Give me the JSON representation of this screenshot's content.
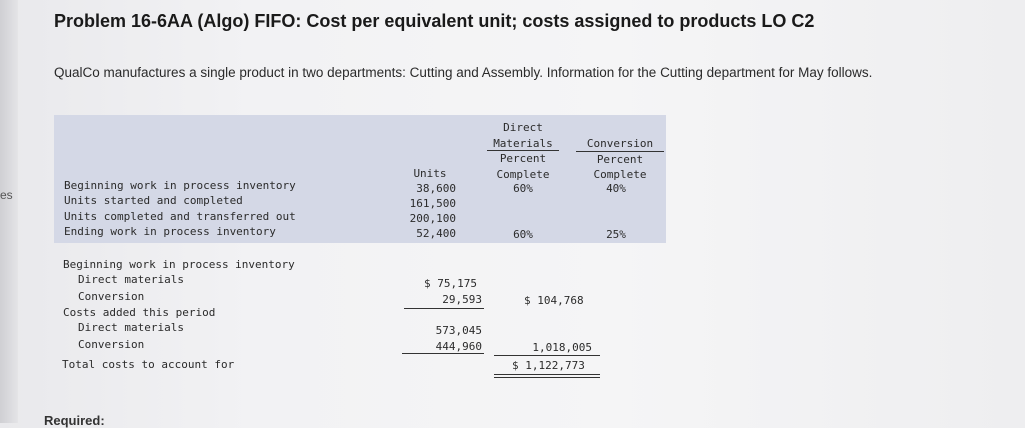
{
  "sidebar_fragment": "es",
  "title": "Problem 16-6AA (Algo) FIFO: Cost per equivalent unit; costs assigned to products LO C2",
  "intro": "QualCo manufactures a single product in two departments: Cutting and Assembly. Information for the Cutting department for May follows.",
  "headers": {
    "units": "Units",
    "dm": [
      "Direct",
      "Materials",
      "Percent",
      "Complete"
    ],
    "conv": [
      "Conversion",
      "Percent",
      "Complete"
    ]
  },
  "unit_rows": [
    {
      "label": "Beginning work in process inventory",
      "units": "38,600",
      "dm": "60%",
      "conv": "40%"
    },
    {
      "label": "Units started and completed",
      "units": "161,500",
      "dm": "",
      "conv": ""
    },
    {
      "label": "Units completed and transferred out",
      "units": "200,100",
      "dm": "",
      "conv": ""
    },
    {
      "label": "Ending work in process inventory",
      "units": "52,400",
      "dm": "60%",
      "conv": "25%"
    }
  ],
  "cost_rows": [
    {
      "label": "Beginning work in process inventory",
      "col1": "",
      "col2": ""
    },
    {
      "label": "Direct materials",
      "col1": "$ 75,175",
      "col2": ""
    },
    {
      "label": "Conversion",
      "col1": "29,593",
      "col2": "$ 104,768"
    },
    {
      "label": "Costs added this period",
      "col1": "",
      "col2": ""
    },
    {
      "label": "Direct materials",
      "col1": "573,045",
      "col2": ""
    },
    {
      "label": "Conversion",
      "col1": "444,960",
      "col2": "1,018,005"
    },
    {
      "label": "Total costs to account for",
      "col1": "",
      "col2": "$ 1,122,773"
    }
  ],
  "required_label": "Required:"
}
